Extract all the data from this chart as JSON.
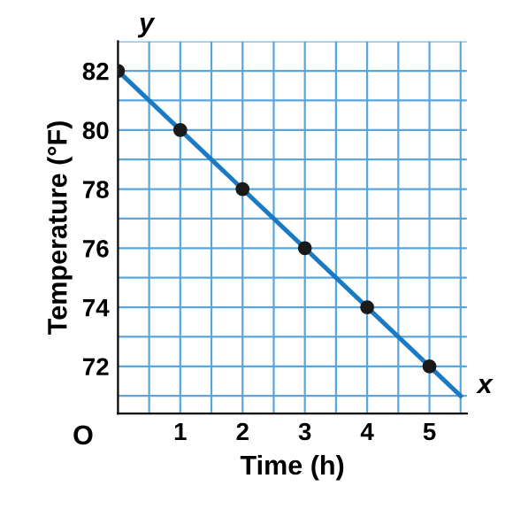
{
  "chart_data": {
    "type": "line",
    "xlabel": "Time (h)",
    "ylabel": "Temperature (°F)",
    "annotations": [
      "y",
      "x",
      "O"
    ],
    "series": [
      {
        "color": "#1a7ac4",
        "x": [
          0,
          5.5
        ],
        "values": [
          82,
          71
        ],
        "marker": "none"
      },
      {
        "type": "scatter",
        "color": "#1a1a1a",
        "x": [
          0,
          1,
          2,
          3,
          4,
          5
        ],
        "values": [
          82,
          80,
          78,
          76,
          74,
          72
        ],
        "marker": "circle"
      }
    ],
    "xlim": [
      0,
      5.6
    ],
    "ylim": [
      70.4,
      83
    ],
    "xticks": [
      {
        "value": 0.5,
        "label": null
      },
      1,
      {
        "value": 1.5,
        "label": null
      },
      2,
      {
        "value": 2.5,
        "label": null
      },
      3,
      {
        "value": 3.5,
        "label": null
      },
      4,
      {
        "value": 4.5,
        "label": null
      },
      5,
      {
        "value": 5.5,
        "label": null
      }
    ],
    "yticks": [
      {
        "value": 71,
        "label": null
      },
      72,
      {
        "value": 73,
        "label": null
      },
      74,
      {
        "value": 75,
        "label": null
      },
      76,
      {
        "value": 77,
        "label": null
      },
      78,
      {
        "value": 79,
        "label": null
      },
      80,
      {
        "value": 81,
        "label": null
      },
      82,
      {
        "value": 83,
        "label": null
      }
    ],
    "grid": true
  }
}
